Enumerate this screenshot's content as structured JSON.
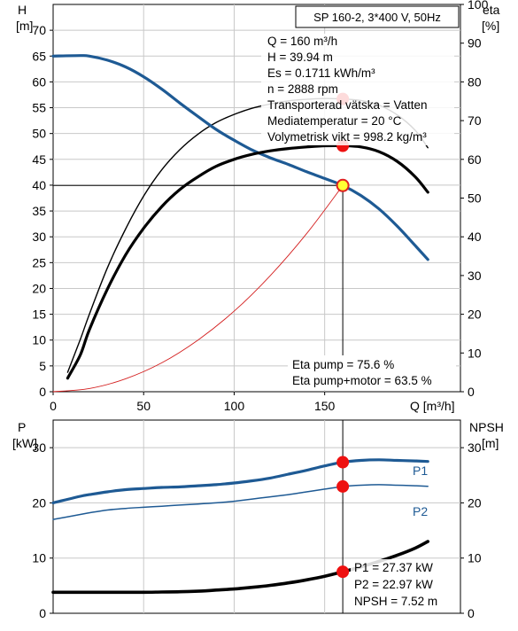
{
  "chart_data": [
    {
      "type": "line",
      "title": "SP 160-2, 3*400 V, 50Hz",
      "left_axis": {
        "label_top": "H",
        "label_unit": "[m]",
        "range": [
          0,
          75
        ],
        "ticks": [
          0,
          5,
          10,
          15,
          20,
          25,
          30,
          35,
          40,
          45,
          50,
          55,
          60,
          65,
          70
        ]
      },
      "right_axis": {
        "label_top": "eta",
        "label_unit": "[%]",
        "range": [
          0,
          100
        ],
        "ticks": [
          0,
          10,
          20,
          30,
          40,
          50,
          60,
          70,
          80,
          90,
          100
        ]
      },
      "x_axis": {
        "label": "Q [m³/h]",
        "range": [
          0,
          225
        ],
        "ticks": [
          0,
          50,
          100,
          150
        ]
      },
      "info_lines": [
        "Q = 160 m³/h",
        "H = 39.94 m",
        "Es = 0.1711 kWh/m³",
        "n = 2888 rpm",
        "Transporterad vätska = Vatten",
        "Mediatemperatur = 20 °C",
        "Volymetrisk vikt = 998.2 kg/m³"
      ],
      "eta_lines": [
        "Eta pump = 75.6 %",
        "Eta pump+motor = 63.5 %"
      ],
      "series": [
        {
          "key": "H",
          "axis": "left",
          "color": "#1e5a94",
          "x": [
            0,
            15,
            20,
            30,
            40,
            50,
            60,
            70,
            80,
            90,
            100,
            110,
            120,
            130,
            140,
            150,
            160,
            170,
            180,
            190,
            200,
            207
          ],
          "y": [
            65,
            65.1,
            65,
            64.2,
            62.9,
            61,
            58.6,
            55.9,
            53.3,
            50.8,
            48.7,
            46.8,
            45.3,
            44,
            42.6,
            41.3,
            39.94,
            38,
            35.4,
            32.1,
            28.3,
            25.6
          ]
        },
        {
          "key": "eta_pump",
          "axis": "right",
          "color": "#000000",
          "x": [
            8,
            15,
            20,
            30,
            40,
            50,
            60,
            70,
            80,
            90,
            100,
            110,
            120,
            130,
            140,
            150,
            160,
            170,
            180,
            190,
            200,
            207
          ],
          "y": [
            5,
            13.5,
            20,
            32,
            42,
            50.5,
            57.3,
            62.5,
            66.5,
            69.5,
            71.6,
            73.2,
            74.3,
            75.1,
            75.5,
            75.7,
            75.6,
            75.2,
            74,
            71.5,
            67.5,
            63
          ]
        },
        {
          "key": "eta_pump_motor",
          "axis": "right",
          "color": "#000000",
          "x": [
            8,
            15,
            20,
            30,
            40,
            50,
            60,
            70,
            80,
            90,
            100,
            110,
            120,
            130,
            140,
            150,
            160,
            170,
            180,
            190,
            200,
            207
          ],
          "y": [
            3.5,
            9.5,
            16,
            26.5,
            35.3,
            42.2,
            47.8,
            52.2,
            55.5,
            58.2,
            60,
            61.3,
            62.2,
            62.8,
            63.2,
            63.5,
            63.5,
            63.2,
            62,
            59.5,
            55.5,
            51.5
          ]
        },
        {
          "key": "system_curve",
          "axis": "left",
          "color": "#d42020",
          "x": [
            0,
            20,
            40,
            60,
            80,
            100,
            120,
            140,
            160
          ],
          "y": [
            0,
            0.62,
            2.5,
            5.6,
            10,
            15.6,
            22.5,
            30.6,
            39.94
          ]
        }
      ],
      "operating_points": [
        {
          "key": "duty_point",
          "x": 160,
          "y": 39.94,
          "axis": "left",
          "style": "yellow"
        },
        {
          "key": "eta_pump_point",
          "x": 160,
          "y": 75.6,
          "axis": "right",
          "style": "red"
        },
        {
          "key": "eta_total_point",
          "x": 160,
          "y": 63.5,
          "axis": "right",
          "style": "red"
        }
      ]
    },
    {
      "type": "line",
      "left_axis": {
        "label_top": "P",
        "label_unit": "[kW]",
        "range": [
          0,
          35
        ],
        "ticks": [
          0,
          10,
          20,
          30
        ]
      },
      "right_axis": {
        "label_top": "NPSH",
        "label_unit": "[m]",
        "range": [
          0,
          35
        ],
        "ticks": [
          0,
          10,
          20,
          30
        ]
      },
      "x_axis": {
        "range": [
          0,
          225
        ]
      },
      "power_lines": [
        "P1 = 27.37 kW",
        "P2 = 22.97 kW",
        "NPSH = 7.52 m"
      ],
      "series": [
        {
          "key": "P1",
          "name": "P1",
          "axis": "left",
          "color": "#1e5a94",
          "x": [
            0,
            15,
            20,
            30,
            40,
            50,
            60,
            70,
            80,
            90,
            100,
            110,
            120,
            130,
            140,
            150,
            160,
            170,
            180,
            190,
            200,
            207
          ],
          "y": [
            20,
            21.2,
            21.5,
            22,
            22.4,
            22.6,
            22.8,
            22.9,
            23.1,
            23.3,
            23.6,
            24,
            24.5,
            25.2,
            25.9,
            26.7,
            27.37,
            27.7,
            27.8,
            27.7,
            27.6,
            27.5
          ]
        },
        {
          "key": "P2",
          "name": "P2",
          "axis": "left",
          "color": "#1e5a94",
          "x": [
            0,
            15,
            20,
            30,
            40,
            50,
            60,
            70,
            80,
            90,
            100,
            110,
            120,
            130,
            140,
            150,
            160,
            170,
            180,
            190,
            200,
            207
          ],
          "y": [
            17,
            17.9,
            18.2,
            18.7,
            19,
            19.2,
            19.4,
            19.6,
            19.8,
            20,
            20.3,
            20.7,
            21.1,
            21.5,
            22,
            22.5,
            22.97,
            23.2,
            23.3,
            23.2,
            23.1,
            23
          ]
        },
        {
          "key": "NPSH",
          "axis": "right",
          "color": "#000000",
          "x": [
            0,
            15,
            20,
            30,
            40,
            50,
            60,
            70,
            80,
            90,
            100,
            110,
            120,
            130,
            140,
            150,
            160,
            170,
            180,
            190,
            200,
            207
          ],
          "y": [
            3.8,
            3.8,
            3.8,
            3.8,
            3.8,
            3.8,
            3.85,
            3.9,
            4,
            4.2,
            4.4,
            4.7,
            5.05,
            5.5,
            6.05,
            6.7,
            7.52,
            8.4,
            9.4,
            10.5,
            11.8,
            13
          ]
        }
      ],
      "operating_points": [
        {
          "key": "p1_point",
          "x": 160,
          "y": 27.37,
          "axis": "left",
          "style": "red"
        },
        {
          "key": "p2_point",
          "x": 160,
          "y": 22.97,
          "axis": "left",
          "style": "red"
        },
        {
          "key": "npsh_point",
          "x": 160,
          "y": 7.52,
          "axis": "right",
          "style": "red"
        }
      ]
    }
  ]
}
